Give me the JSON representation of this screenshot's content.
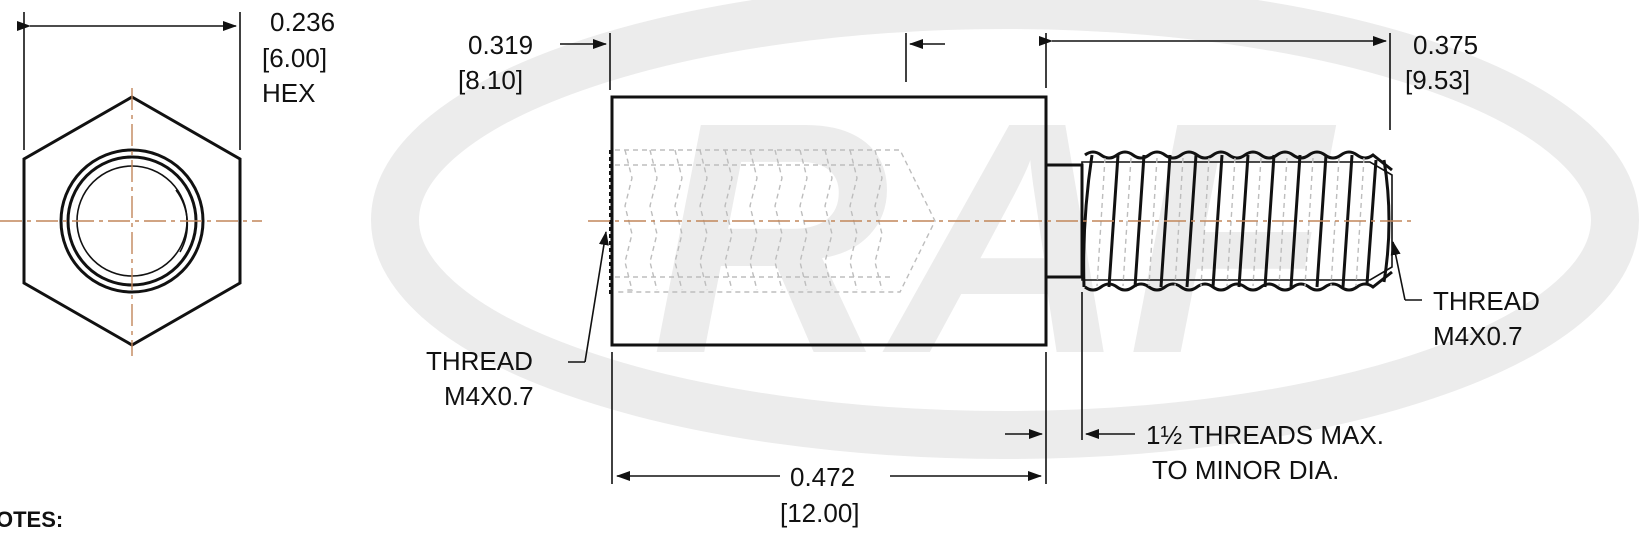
{
  "watermark": {
    "text": "RAF",
    "color": "#ececec"
  },
  "colors": {
    "line": "#111111",
    "centerline": "#c2865a",
    "hidden": "#bdbdbd"
  },
  "dimensions": {
    "hex_across_flats": {
      "inch": "0.236",
      "mm": "[6.00]",
      "suffix": "HEX"
    },
    "body_diameter": {
      "inch": "0.319",
      "mm": "[8.10]"
    },
    "stud_length": {
      "inch": "0.375",
      "mm": "[9.53]"
    },
    "body_length": {
      "inch": "0.472",
      "mm": "[12.00]"
    }
  },
  "callouts": {
    "internal_thread": {
      "line1": "THREAD",
      "line2": "M4X0.7"
    },
    "external_thread": {
      "line1": "THREAD",
      "line2": "M4X0.7"
    },
    "thread_runout": {
      "line1": "1½ THREADS MAX.",
      "line2": "TO MINOR DIA."
    }
  },
  "notes_heading": "OTES:"
}
